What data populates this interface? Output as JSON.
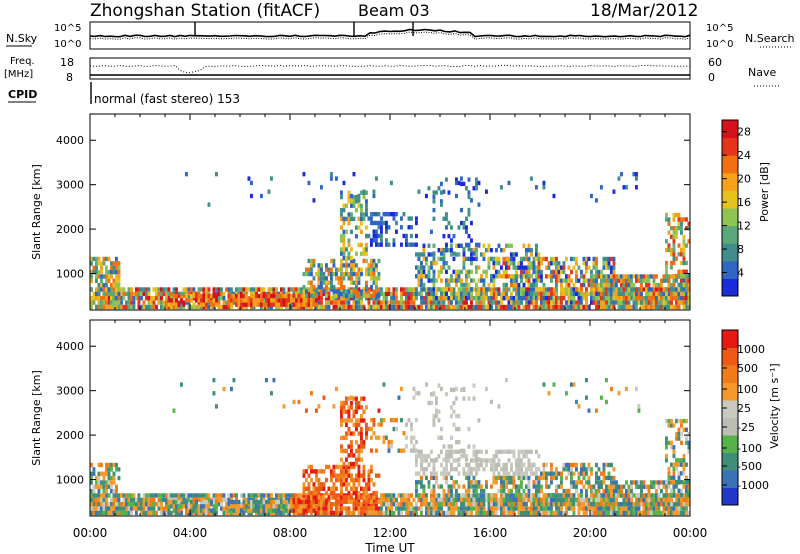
{
  "header": {
    "station": "Zhongshan Station (fitACF)",
    "beam": "Beam 03",
    "date": "18/Mar/2012"
  },
  "mini_panels": {
    "nsky_label": "N.Sky",
    "nsearch_label": "N.Search",
    "freq_label_1": "Freq.",
    "freq_label_2": "[MHz]",
    "nave_label": "Nave",
    "cpid_label": "CPID",
    "cpid_text": "normal (fast stereo) 153",
    "noise_ticks_left": [
      "10^5",
      "10^0"
    ],
    "noise_ticks_right": [
      "10^5",
      "10^0"
    ],
    "freq_ticks_left": [
      "18",
      "8"
    ],
    "freq_ticks_right": [
      "60",
      "0"
    ]
  },
  "chart_data": [
    {
      "type": "heatmap",
      "name": "power",
      "ylabel": "Slant Range [km]",
      "xlabel": "Time UT",
      "x_ticks": [
        "00:00",
        "04:00",
        "08:00",
        "12:00",
        "16:00",
        "20:00",
        "00:00"
      ],
      "xlim_hours": [
        0,
        24
      ],
      "ylim_km": [
        180,
        4590
      ],
      "y_ticks": [
        1000,
        2000,
        3000,
        4000
      ],
      "colorbar_label": "Power [dB]",
      "colorbar_ticks": [
        "4",
        "8",
        "12",
        "16",
        "20",
        "24",
        "28"
      ],
      "colorbar_range": [
        0,
        30
      ],
      "colors": [
        "#1b2bd9",
        "#2f66c3",
        "#3f8e8c",
        "#5aa97a",
        "#8ec452",
        "#e7c21f",
        "#f6a11a",
        "#f26f12",
        "#e6341a",
        "#d4121c"
      ],
      "description": "Backscatter power vs. time and slant range"
    },
    {
      "type": "heatmap",
      "name": "velocity",
      "ylabel": "Slant Range [km]",
      "xlabel": "Time UT",
      "x_ticks": [
        "00:00",
        "04:00",
        "08:00",
        "12:00",
        "16:00",
        "20:00",
        "00:00"
      ],
      "xlim_hours": [
        0,
        24
      ],
      "ylim_km": [
        180,
        4590
      ],
      "y_ticks": [
        1000,
        2000,
        3000,
        4000
      ],
      "colorbar_label": "Velocity [m s⁻¹]",
      "colorbar_ticks": [
        "1000",
        "500",
        "100",
        "25",
        "-25",
        "-100",
        "-500",
        "-1000"
      ],
      "colors": [
        "#2236c9",
        "#3a72b8",
        "#3e8e7a",
        "#56b34a",
        "#bdbdb4",
        "#c9c9c1",
        "#f59a2a",
        "#f07b18",
        "#ee5a14",
        "#e61a12"
      ]
    }
  ]
}
